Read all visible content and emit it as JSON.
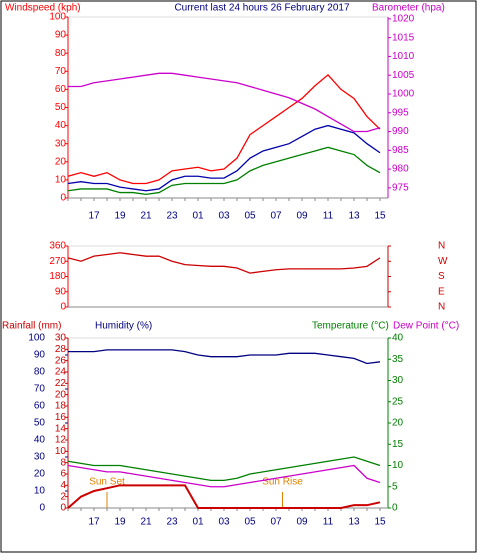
{
  "chart_data": [
    {
      "type": "line",
      "headings": [
        {
          "text": "Windspeed (kph)",
          "color": "#ff0000"
        },
        {
          "text": "Current last 24 hours 26 February 2017",
          "color": "#000080"
        },
        {
          "text": "Barometer (hpa)",
          "color": "#cc00cc"
        }
      ],
      "categories": [
        null,
        null,
        "17",
        null,
        "19",
        null,
        "21",
        null,
        "23",
        null,
        "01",
        null,
        "03",
        null,
        "05",
        null,
        "07",
        null,
        "09",
        null,
        "11",
        null,
        "13",
        null,
        "15"
      ],
      "axes": [
        {
          "color": "#ff0000",
          "lim": [
            0,
            100
          ],
          "ticks": [
            0,
            10,
            20,
            30,
            40,
            50,
            60,
            70,
            80,
            90,
            100
          ]
        },
        {
          "color": "#cc00cc",
          "lim": [
            972.3,
            1020.5
          ],
          "ticks": [
            975,
            980,
            985,
            990,
            995,
            1000,
            1005,
            1010,
            1015,
            1020
          ]
        }
      ],
      "series": [
        {
          "color": "#ff0000",
          "axis": 0,
          "values": [
            12,
            14,
            12,
            14,
            10,
            8,
            8,
            10,
            15,
            16,
            17,
            15,
            16,
            22,
            35,
            40,
            45,
            50,
            55,
            62,
            68,
            60,
            55,
            45,
            38
          ]
        },
        {
          "color": "#0000aa",
          "axis": 0,
          "values": [
            8,
            9,
            8,
            8,
            6,
            5,
            4,
            5,
            10,
            12,
            12,
            11,
            11,
            15,
            22,
            26,
            28,
            30,
            34,
            38,
            40,
            38,
            36,
            30,
            25
          ]
        },
        {
          "color": "#008000",
          "axis": 0,
          "values": [
            4,
            5,
            5,
            5,
            3,
            3,
            2,
            3,
            7,
            8,
            8,
            8,
            8,
            10,
            15,
            18,
            20,
            22,
            24,
            26,
            28,
            26,
            24,
            18,
            14
          ]
        },
        {
          "color": "#cc00cc",
          "axis": 1,
          "values": [
            1002,
            1002,
            1003,
            1003.5,
            1004,
            1004.5,
            1005,
            1005.5,
            1005.5,
            1005,
            1004.5,
            1004,
            1003.5,
            1003,
            1002,
            1001,
            1000,
            999,
            997.5,
            996,
            994,
            992,
            990,
            990,
            991
          ]
        }
      ]
    },
    {
      "type": "line",
      "axes": [
        {
          "color": "#ff0000",
          "lim": [
            0,
            360
          ],
          "ticks": [
            0,
            90,
            180,
            270,
            360
          ]
        },
        {
          "color": "#cc0000",
          "lim": [
            0,
            360
          ],
          "ticks": [
            {
              "value": 0,
              "label": "N"
            },
            {
              "value": 90,
              "label": "E"
            },
            {
              "value": 180,
              "label": "S"
            },
            {
              "value": 270,
              "label": "W"
            },
            {
              "value": 360,
              "label": "N"
            }
          ]
        }
      ],
      "series": [
        {
          "color": "#cc0000",
          "axis": 0,
          "values": [
            290,
            270,
            300,
            310,
            320,
            310,
            300,
            300,
            270,
            250,
            245,
            240,
            240,
            230,
            200,
            210,
            220,
            225,
            225,
            225,
            225,
            225,
            230,
            240,
            290
          ]
        }
      ]
    },
    {
      "type": "line",
      "headings": [
        {
          "text": "Rainfall (mm)",
          "color": "#cc0000"
        },
        {
          "text": "Humidity (%)",
          "color": "#000080"
        },
        {
          "text": "Temperature (°C)",
          "color": "#008000"
        },
        {
          "text": "Dew Point (°C)",
          "color": "#cc00cc"
        }
      ],
      "categories": [
        null,
        null,
        "17",
        null,
        "19",
        null,
        "21",
        null,
        "23",
        null,
        "01",
        null,
        "03",
        null,
        "05",
        null,
        "07",
        null,
        "09",
        null,
        "11",
        null,
        "13",
        null,
        "15"
      ],
      "axes": [
        {
          "color": "#000080",
          "lim": [
            0,
            100
          ],
          "ticks": [
            0,
            10,
            20,
            30,
            40,
            50,
            60,
            70,
            80,
            90,
            100
          ]
        },
        {
          "color": "#cc0000",
          "lim": [
            0,
            30
          ],
          "ticks": [
            0,
            2,
            4,
            6,
            8,
            10,
            12,
            14,
            16,
            18,
            20,
            22,
            24,
            26,
            28,
            30
          ]
        },
        {
          "color": "#008000",
          "lim": [
            0,
            40
          ],
          "ticks": [
            0,
            5,
            10,
            15,
            20,
            25,
            30,
            35,
            40
          ]
        }
      ],
      "series": [
        {
          "color": "#cc0000",
          "axis": 1,
          "values": [
            0,
            2,
            3,
            3.5,
            4,
            4,
            4,
            4,
            4,
            4,
            0,
            0,
            0,
            0,
            0,
            0,
            0,
            0,
            0,
            0,
            0,
            0,
            0.5,
            0.5,
            1
          ]
        },
        {
          "color": "#000080",
          "axis": 0,
          "values": [
            92,
            92,
            92,
            93,
            93,
            93,
            93,
            93,
            93,
            92,
            90,
            89,
            89,
            89,
            90,
            90,
            90,
            91,
            91,
            91,
            90,
            89,
            88,
            85,
            86
          ]
        },
        {
          "color": "#008000",
          "axis": 2,
          "values": [
            11,
            10.5,
            10,
            10,
            10,
            9.5,
            9,
            8.5,
            8,
            7.5,
            7,
            6.5,
            6.5,
            7,
            8,
            8.5,
            9,
            9.5,
            10,
            10.5,
            11,
            11.5,
            12,
            11,
            10
          ]
        },
        {
          "color": "#cc00cc",
          "axis": 2,
          "values": [
            10,
            9.5,
            9,
            8.5,
            8.5,
            8,
            7.5,
            7,
            6.5,
            6,
            5.5,
            5,
            5,
            5.5,
            6,
            6.5,
            7,
            7.5,
            8,
            8.5,
            9,
            9.5,
            10,
            7,
            6
          ]
        }
      ],
      "annotations": [
        {
          "text": "Sun Set",
          "x": 3
        },
        {
          "text": "Sun Rise",
          "x": 16.5
        }
      ]
    }
  ]
}
